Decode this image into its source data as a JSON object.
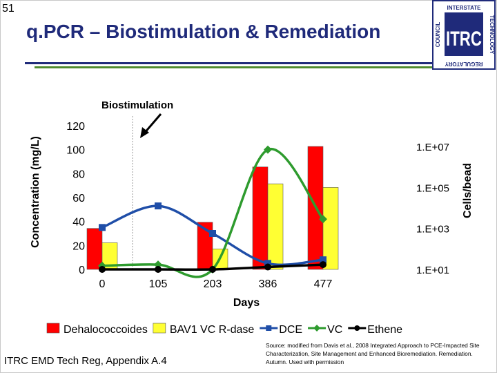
{
  "slide": {
    "number": "51",
    "title": "q.PCR – Biostimulation & Remediation",
    "footer_left": "ITRC EMD Tech Reg, Appendix A.4",
    "footer_right": "Source: modified from Davis et al., 2008 Integrated Approach to PCE-Impacted Site Characterization, Site Management and Enhanced Bioremediation. Remediation. Autumn. Used with permission"
  },
  "logo": {
    "letters": "ITRC",
    "ring_top": "INTERSTATE",
    "ring_right": "TECHNOLOGY",
    "ring_bottom": "REGULATORY",
    "ring_left": "COUNCIL",
    "colors": {
      "primary": "#1f2a7a",
      "accent": "#4f8a2f"
    }
  },
  "chart_data": {
    "type": "bar",
    "categories": [
      "0",
      "105",
      "203",
      "386",
      "477"
    ],
    "xlabel": "Days",
    "ylabel": "Concentration (mg/L)",
    "ylim": [
      0,
      120
    ],
    "yticks": [
      "0",
      "20",
      "40",
      "60",
      "80",
      "100",
      "120"
    ],
    "y2label": "Cells/bead",
    "y2ticks": [
      "1.E+01",
      "1.E+03",
      "1.E+05",
      "1.E+07"
    ],
    "y2scale": "log",
    "grid": false,
    "legend_position": "bottom",
    "annotation": {
      "text": "Biostimulation",
      "at_category": "105"
    },
    "series": [
      {
        "name": "Dehalococcoides",
        "kind": "bar",
        "axis": "right",
        "color": "#ff0000",
        "values": [
          1000.0,
          null,
          2000.0,
          1000000.0,
          10000000.0
        ]
      },
      {
        "name": "BAV1 VC R-dase",
        "kind": "bar",
        "axis": "right",
        "color": "#ffff33",
        "values": [
          200.0,
          null,
          100.0,
          150000.0,
          100000.0
        ]
      },
      {
        "name": "DCE",
        "kind": "line",
        "axis": "left",
        "color": "#1f4ea8",
        "values": [
          35,
          53,
          30,
          5,
          8
        ]
      },
      {
        "name": "VC",
        "kind": "line",
        "axis": "left",
        "color": "#2e9b2e",
        "values": [
          3,
          4,
          0,
          100,
          42
        ]
      },
      {
        "name": "Ethene",
        "kind": "line",
        "axis": "left",
        "color": "#000000",
        "values": [
          0,
          0,
          0,
          2,
          4
        ]
      }
    ]
  }
}
